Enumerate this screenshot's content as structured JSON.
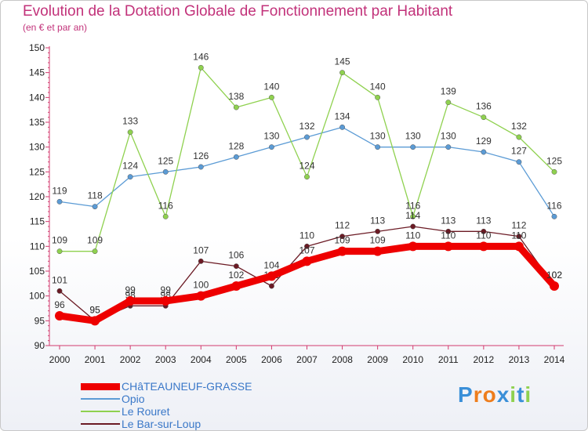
{
  "chart_data": {
    "type": "line",
    "title": "Evolution de la Dotation Globale de Fonctionnement par Habitant",
    "subtitle": "(en € et par an)",
    "xlabel": "",
    "ylabel": "",
    "ylim": [
      90,
      150
    ],
    "yticks": [
      90,
      95,
      100,
      105,
      110,
      115,
      120,
      125,
      130,
      135,
      140,
      145,
      150
    ],
    "grid": false,
    "x": [
      "2000",
      "2001",
      "2002",
      "2003",
      "2004",
      "2005",
      "2006",
      "2007",
      "2008",
      "2009",
      "2010",
      "2011",
      "2012",
      "2013",
      "2014"
    ],
    "series": [
      {
        "name": "CHâTEAUNEUF-GRASSE",
        "color": "#ee0000",
        "highlight": true,
        "values": [
          96,
          95,
          99,
          99,
          100,
          102,
          104,
          107,
          109,
          109,
          110,
          110,
          110,
          110,
          102
        ]
      },
      {
        "name": "Opio",
        "color": "#5b9bd5",
        "values": [
          119,
          118,
          124,
          125,
          126,
          128,
          130,
          132,
          134,
          130,
          130,
          130,
          129,
          127,
          116
        ]
      },
      {
        "name": "Le Rouret",
        "color": "#8fd14f",
        "values": [
          109,
          109,
          133,
          116,
          146,
          138,
          140,
          124,
          145,
          140,
          116,
          139,
          136,
          132,
          125
        ]
      },
      {
        "name": "Le Bar-sur-Loup",
        "color": "#6b1a24",
        "values": [
          101,
          95,
          98,
          98,
          107,
          106,
          102,
          110,
          112,
          113,
          114,
          113,
          113,
          112,
          102
        ]
      }
    ],
    "legend_position": "bottom-left"
  },
  "logo": {
    "text": "Proxiti",
    "letters": [
      "P",
      "r",
      "o",
      "x",
      "i",
      "t",
      "i"
    ],
    "colors": [
      "#3a8fd8",
      "#ee7d1c",
      "#ee7d1c",
      "#3a8fd8",
      "#8fd14f",
      "#3a8fd8",
      "#8fd14f"
    ]
  }
}
